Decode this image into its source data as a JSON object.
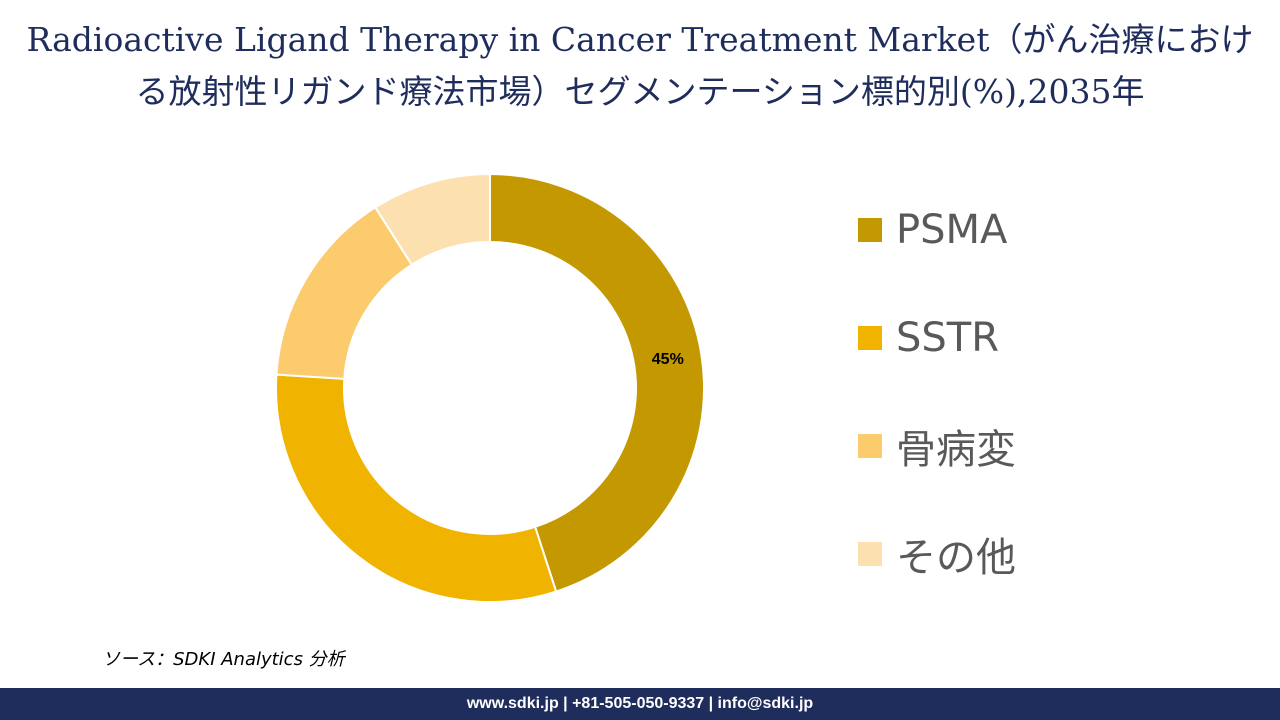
{
  "title": {
    "line1": "Radioactive Ligand Therapy in Cancer Treatment Market（がん治療におけ",
    "line2": "る放射性リガンド療法市場）セグメンテーション標的別(%),2035年"
  },
  "chart_data": {
    "type": "donut",
    "categories": [
      "PSMA",
      "SSTR",
      "骨病変",
      "その他"
    ],
    "values": [
      45,
      31,
      15,
      9
    ],
    "colors": [
      "#c49800",
      "#f0b400",
      "#fccb6e",
      "#fde0b0"
    ],
    "data_labels": [
      "45%",
      "",
      "",
      ""
    ],
    "legend_position": "right",
    "start_angle": "top, clockwise"
  },
  "source": "ソース：SDKI Analytics 分析",
  "footer": "www.sdki.jp | +81-505-050-9337 | info@sdki.jp"
}
